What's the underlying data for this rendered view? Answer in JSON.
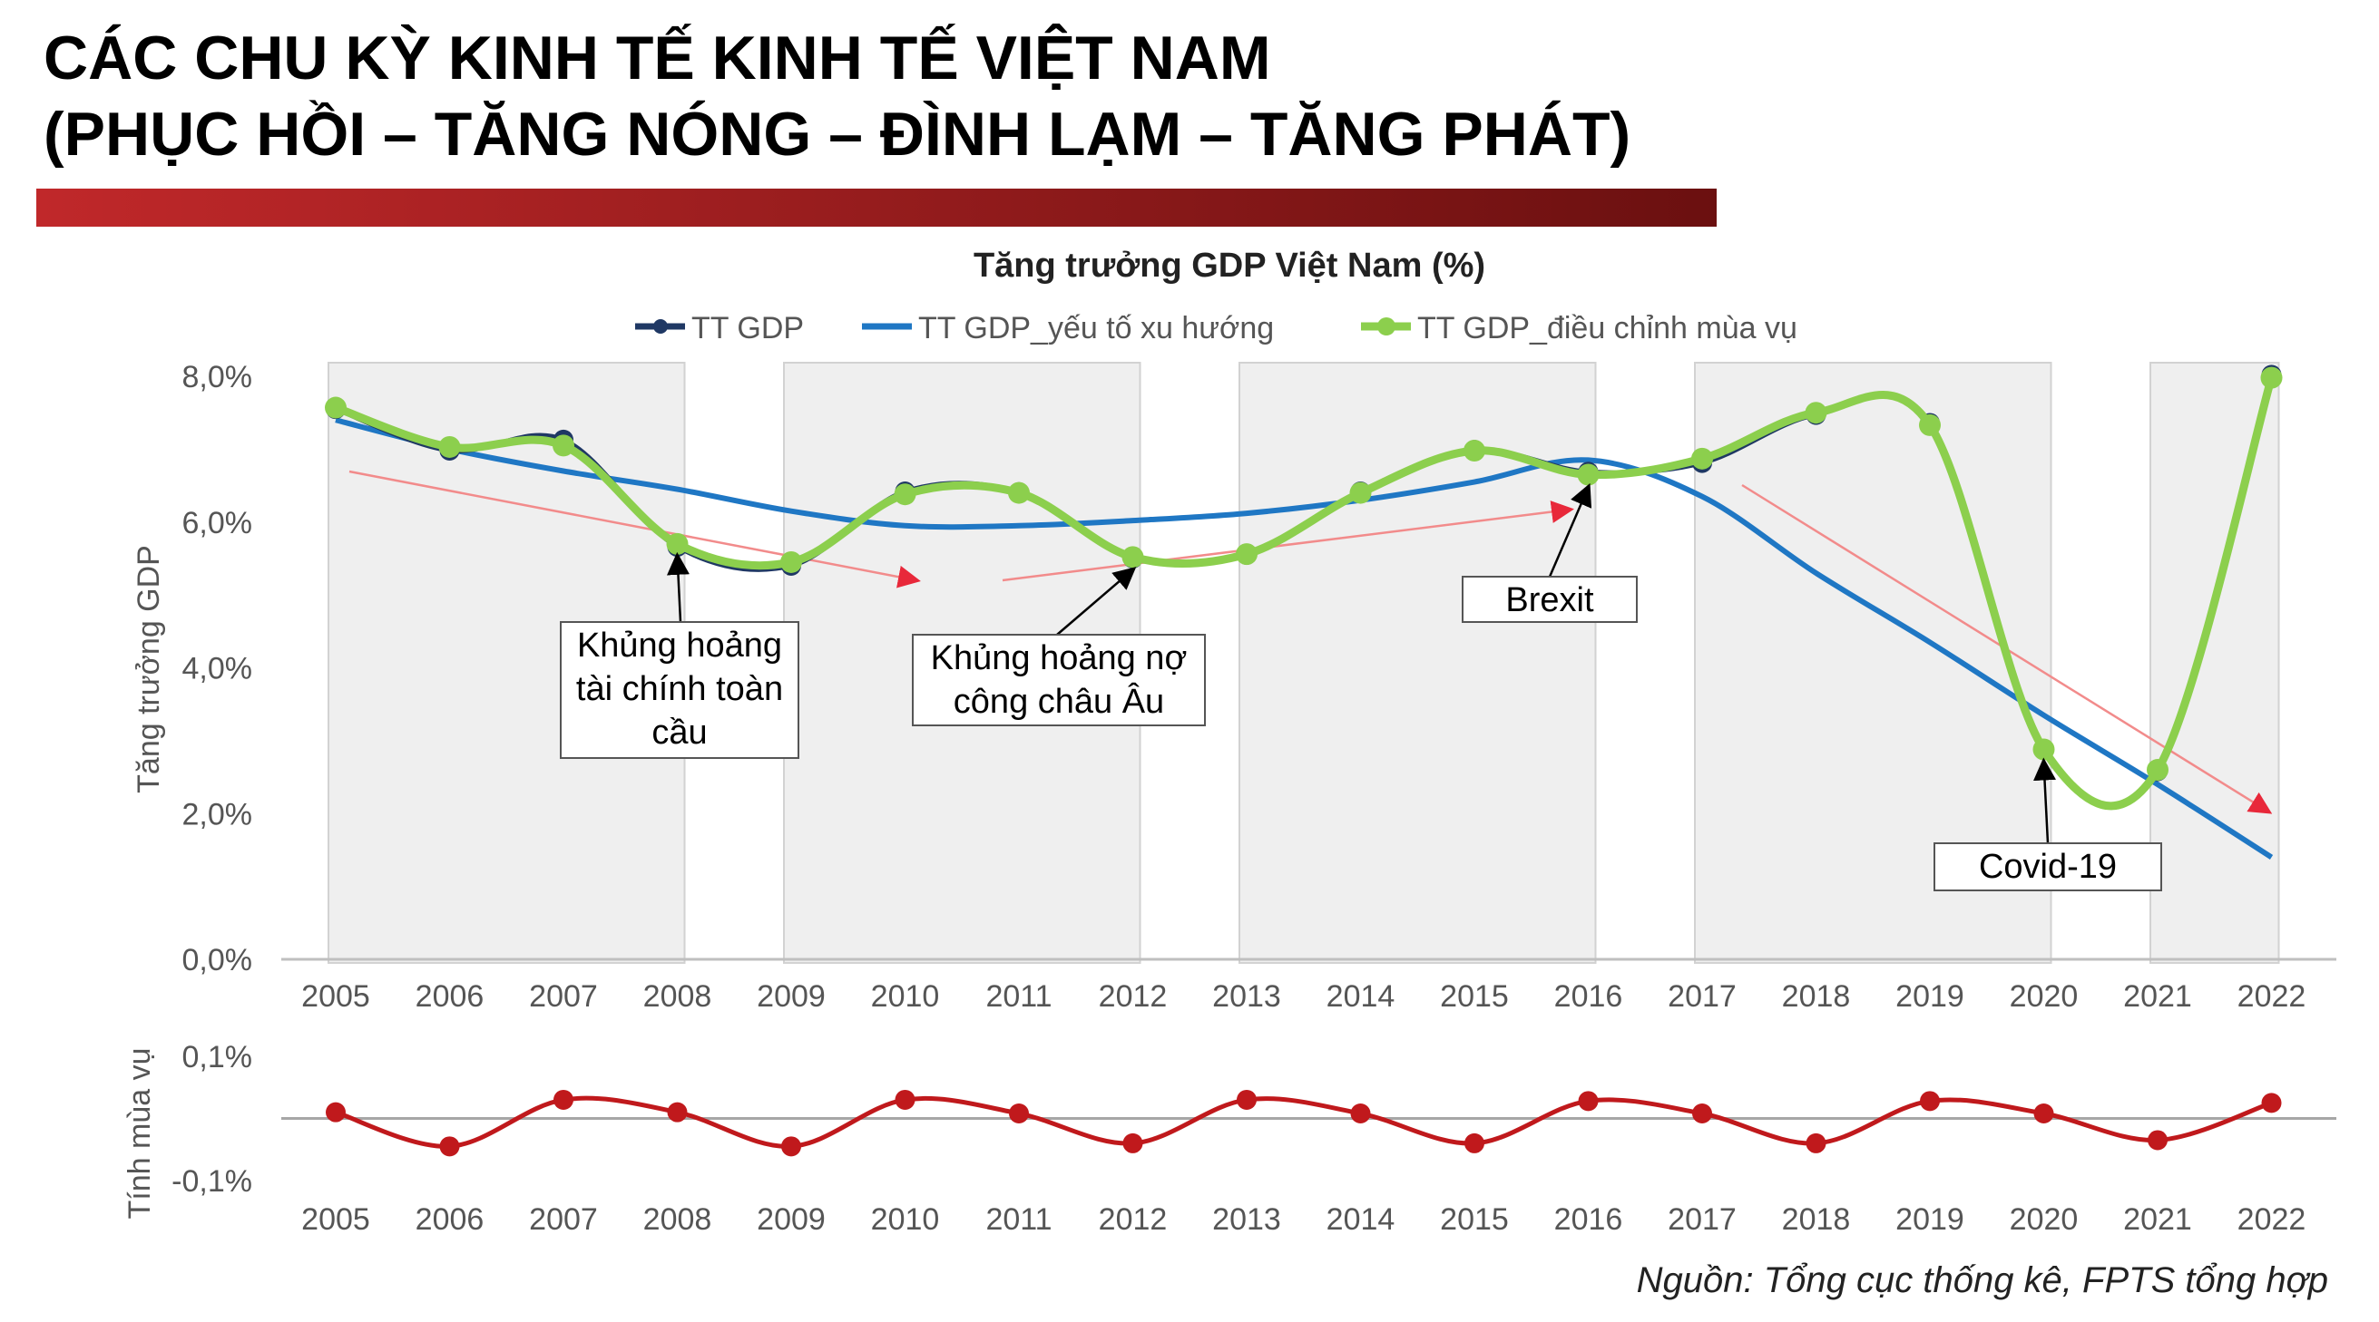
{
  "header": {
    "title_line1": "CÁC CHU KỲ KINH TẾ KINH TẾ VIỆT NAM",
    "title_line2": "(PHỤC HỒI – TĂNG NÓNG – ĐÌNH LẠM – TĂNG PHÁT)",
    "band_color_left": "#c0282a",
    "band_color_right": "#6b1010"
  },
  "source": "Nguồn: Tổng cục thống kê, FPTS tổng hợp",
  "chart_data": [
    {
      "type": "line",
      "title": "Tăng trưởng GDP Việt Nam (%)",
      "ylabel": "Tăng trưởng GDP",
      "xlabel": "",
      "ylim": [
        0,
        8
      ],
      "yticks": [
        "0,0%",
        "2,0%",
        "4,0%",
        "6,0%",
        "8,0%"
      ],
      "ytick_values": [
        0,
        2,
        4,
        6,
        8
      ],
      "categories": [
        "2005",
        "2006",
        "2007",
        "2008",
        "2009",
        "2010",
        "2011",
        "2012",
        "2013",
        "2014",
        "2015",
        "2016",
        "2017",
        "2018",
        "2019",
        "2020",
        "2021",
        "2022"
      ],
      "legend_position": "top",
      "grid": false,
      "series": [
        {
          "name": "TT GDP",
          "color": "#1f3864",
          "values": [
            7.55,
            6.98,
            7.13,
            5.66,
            5.4,
            6.42,
            6.41,
            5.5,
            5.55,
            6.42,
            6.99,
            6.69,
            6.81,
            7.47,
            7.36,
            2.87,
            2.58,
            8.02
          ]
        },
        {
          "name": "TT GDP_yếu tố xu hướng",
          "color": "#1f77c4",
          "values": [
            7.4,
            7.0,
            6.7,
            6.45,
            6.15,
            5.95,
            5.95,
            6.02,
            6.12,
            6.3,
            6.55,
            6.85,
            6.35,
            5.3,
            4.35,
            3.35,
            2.4,
            1.4
          ]
        },
        {
          "name": "TT GDP_điều chỉnh mùa vụ",
          "color": "#8ccf4d",
          "values": [
            7.57,
            7.03,
            7.05,
            5.7,
            5.45,
            6.38,
            6.4,
            5.52,
            5.56,
            6.4,
            6.98,
            6.65,
            6.87,
            7.5,
            7.33,
            2.88,
            2.6,
            7.98
          ]
        }
      ],
      "shaded_periods": [
        [
          "2005",
          "2008"
        ],
        [
          "2009",
          "2012"
        ],
        [
          "2013",
          "2016"
        ],
        [
          "2017",
          "2020"
        ],
        [
          "2021",
          "2022"
        ]
      ],
      "annotations": [
        {
          "text_lines": [
            "Khủng hoảng",
            "tài chính toàn",
            "cầu"
          ],
          "year": "2008"
        },
        {
          "text_lines": [
            "Khủng hoảng nợ",
            "công châu Âu"
          ],
          "year": "2012"
        },
        {
          "text_lines": [
            "Brexit"
          ],
          "year": "2016"
        },
        {
          "text_lines": [
            "Covid-19"
          ],
          "year": "2020"
        }
      ]
    },
    {
      "type": "line",
      "title": "",
      "ylabel": "Tính mùa vụ",
      "ylim": [
        -0.1,
        0.1
      ],
      "yticks": [
        "-0,1%",
        "0,1%"
      ],
      "ytick_values": [
        -0.1,
        0.1
      ],
      "categories": [
        "2005",
        "2006",
        "2007",
        "2008",
        "2009",
        "2010",
        "2011",
        "2012",
        "2013",
        "2014",
        "2015",
        "2016",
        "2017",
        "2018",
        "2019",
        "2020",
        "2021",
        "2022"
      ],
      "series": [
        {
          "name": "",
          "color": "#c0191c",
          "values": [
            0.01,
            -0.045,
            0.03,
            0.01,
            -0.045,
            0.03,
            0.008,
            -0.04,
            0.03,
            0.008,
            -0.04,
            0.028,
            0.008,
            -0.04,
            0.028,
            0.008,
            -0.035,
            0.025
          ]
        }
      ]
    }
  ]
}
